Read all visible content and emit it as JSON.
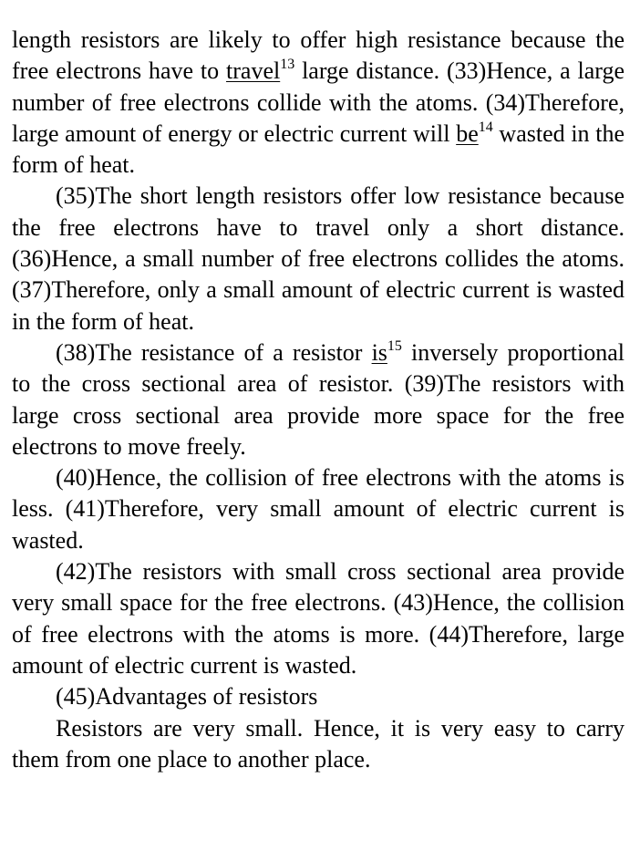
{
  "paragraphs": [
    {
      "indent": false,
      "parts": [
        {
          "t": "length resistors are likely to offer high resistance because the free electrons have to "
        },
        {
          "t": "travel",
          "u": true
        },
        {
          "t": "13",
          "sup": true
        },
        {
          "t": " large distance. (33)Hence, a large number of free electrons collide with the atoms. (34)Therefore, large amount of energy or electric current will "
        },
        {
          "t": "be",
          "u": true
        },
        {
          "t": "14",
          "sup": true
        },
        {
          "t": " wasted in the form of heat."
        }
      ]
    },
    {
      "indent": true,
      "parts": [
        {
          "t": "(35)The short length resistors offer low resistance because the free electrons have to travel only a short distance. (36)Hence, a small number of free electrons collides the atoms. (37)Therefore, only a small amount of electric current is wasted in the form of heat."
        }
      ]
    },
    {
      "indent": true,
      "parts": [
        {
          "t": "(38)The resistance of a resistor "
        },
        {
          "t": "is",
          "u": true
        },
        {
          "t": "15",
          "sup": true
        },
        {
          "t": " inversely proportional to the cross sectional area of resistor. (39)The resistors with large cross sectional area provide more space for the free electrons to move freely."
        }
      ]
    },
    {
      "indent": true,
      "parts": [
        {
          "t": "(40)Hence, the collision of free electrons with the atoms is less. (41)Therefore, very small amount of electric current is wasted."
        }
      ]
    },
    {
      "indent": true,
      "parts": [
        {
          "t": "(42)The resistors with small cross sectional area provide very small space for the free electrons. (43)Hence, the collision of free electrons with the atoms is more. (44)Therefore, large amount of electric current is wasted."
        }
      ]
    },
    {
      "indent": true,
      "parts": [
        {
          "t": "(45)Advantages of resistors"
        }
      ]
    },
    {
      "indent": true,
      "parts": [
        {
          "t": "Resistors are very small. Hence, it is very easy to carry them from one place to another place."
        }
      ]
    }
  ]
}
